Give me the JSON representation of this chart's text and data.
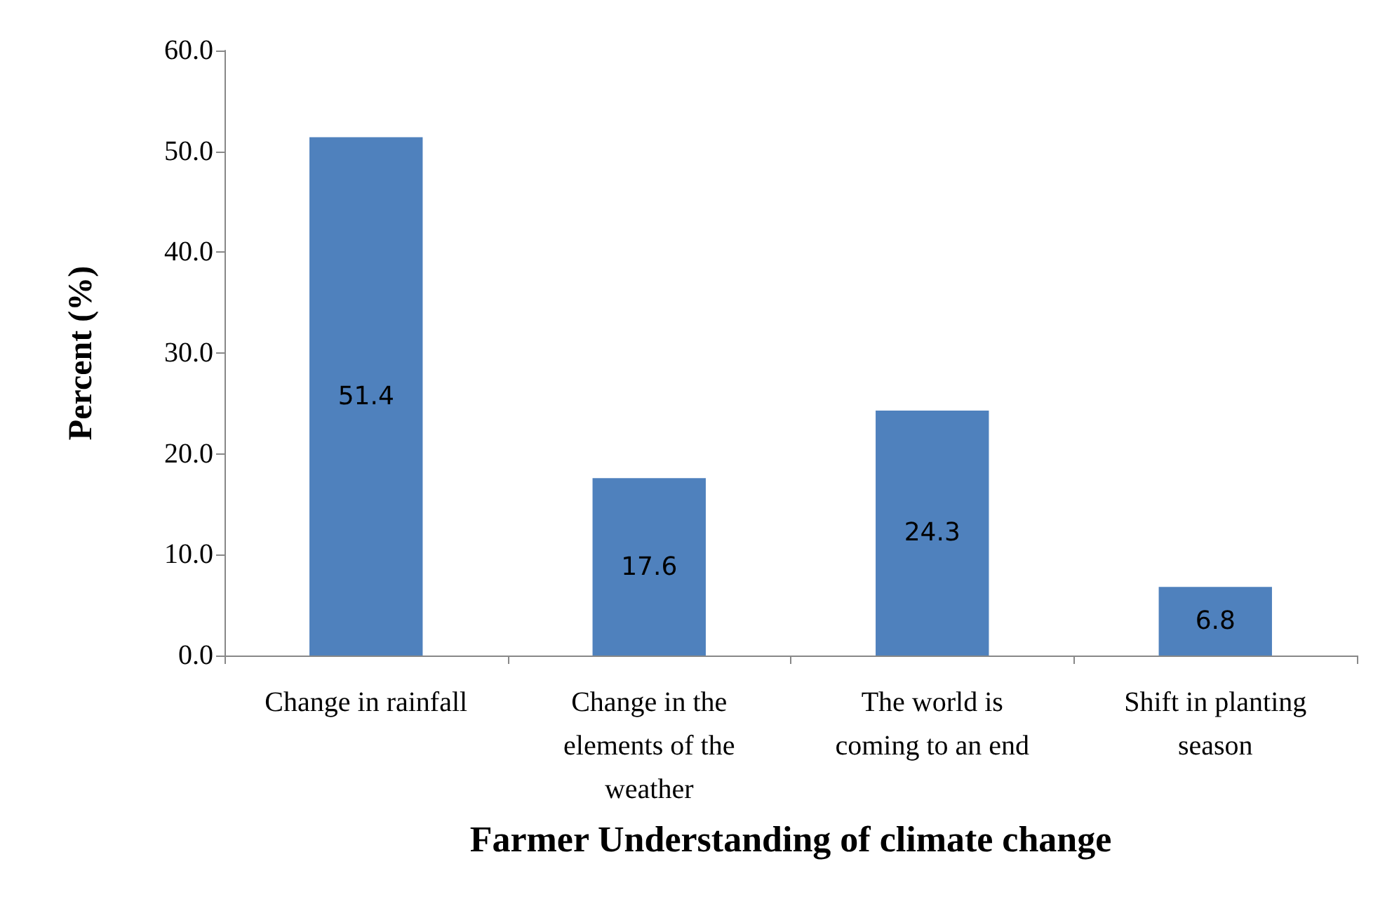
{
  "chart_data": {
    "type": "bar",
    "xlabel": "Farmer Understanding of climate change",
    "ylabel": "Percent (%)",
    "categories": [
      "Change in rainfall",
      "Change in the elements of the weather",
      "The world is coming to an end",
      "Shift in planting season"
    ],
    "values": [
      51.4,
      17.6,
      24.3,
      6.8
    ],
    "color": "#4f81bd",
    "ylim": [
      0,
      60
    ],
    "yticks": [
      {
        "value": 0,
        "label": "0.0"
      },
      {
        "value": 10,
        "label": "10.0"
      },
      {
        "value": 20,
        "label": "20.0"
      },
      {
        "value": 30,
        "label": "30.0"
      },
      {
        "value": 40,
        "label": "40.0"
      },
      {
        "value": 50,
        "label": "50.0"
      },
      {
        "value": 60,
        "label": "60.0"
      }
    ],
    "grid": false,
    "data_labels": true
  }
}
